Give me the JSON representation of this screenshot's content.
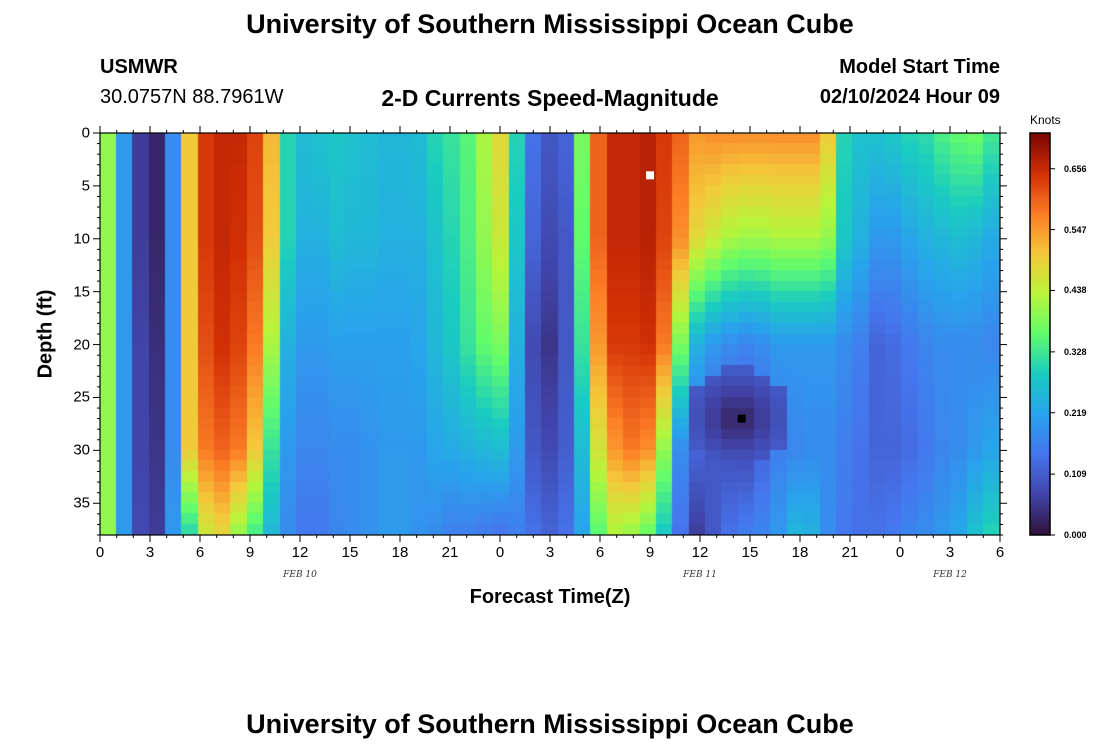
{
  "header": {
    "title": "University of Southern Mississippi Ocean Cube",
    "station": "USMWR",
    "coords": "30.0757N  88.7961W",
    "subtitle": "2-D Currents Speed-Magnitude",
    "model_label": "Model Start Time",
    "model_time": "02/10/2024 Hour 09"
  },
  "footer": {
    "title": "University of Southern Mississippi Ocean Cube"
  },
  "chart_data": {
    "type": "heatmap",
    "title": "2-D Currents Speed-Magnitude",
    "xlabel": "Forecast Time(Z)",
    "ylabel": "Depth (ft)",
    "x_ticks": [
      "0",
      "3",
      "6",
      "9",
      "12",
      "15",
      "18",
      "21",
      "0",
      "3",
      "6",
      "9",
      "12",
      "15",
      "18",
      "21",
      "0",
      "3",
      "6"
    ],
    "x_hours": [
      0,
      3,
      6,
      9,
      12,
      15,
      18,
      21,
      24,
      27,
      30,
      33,
      36,
      39,
      42,
      45,
      48,
      51,
      54
    ],
    "xlim": [
      0,
      54
    ],
    "y_ticks": [
      "0",
      "5",
      "10",
      "15",
      "20",
      "25",
      "30",
      "35"
    ],
    "y_values": [
      0,
      5,
      10,
      15,
      20,
      25,
      30,
      35
    ],
    "ylim": [
      0,
      38
    ],
    "date_labels": [
      {
        "text": "FEB 10",
        "hour": 12
      },
      {
        "text": "FEB 11",
        "hour": 36
      },
      {
        "text": "FEB 12",
        "hour": 51
      }
    ],
    "colorbar": {
      "label": "Knots",
      "ticks": [
        "0.656",
        "0.547",
        "0.438",
        "0.328",
        "0.219",
        "0.109",
        "0.000"
      ],
      "tick_values": [
        0.656,
        0.547,
        0.438,
        0.328,
        0.219,
        0.109,
        0.0
      ],
      "range": [
        0,
        0.72
      ]
    },
    "time_hours": [
      0,
      1,
      2,
      3,
      4,
      5,
      6,
      7,
      8,
      9,
      10,
      11,
      12,
      13,
      14,
      15,
      16,
      17,
      18,
      19,
      20,
      21,
      22,
      23,
      24,
      25,
      26,
      27,
      28,
      29,
      30,
      31,
      32,
      33,
      34,
      35,
      36,
      37,
      38,
      39,
      40,
      41,
      42,
      43,
      44,
      45,
      46,
      47,
      48,
      49,
      50,
      51,
      52,
      53,
      54
    ],
    "depth_profile_ft": [
      0,
      10,
      20,
      30,
      38
    ],
    "speed_knots": [
      [
        0.4,
        0.4,
        0.4,
        0.4,
        0.4
      ],
      [
        0.2,
        0.2,
        0.2,
        0.2,
        0.2
      ],
      [
        0.06,
        0.06,
        0.07,
        0.07,
        0.08
      ],
      [
        0.03,
        0.03,
        0.04,
        0.05,
        0.06
      ],
      [
        0.18,
        0.18,
        0.18,
        0.18,
        0.2
      ],
      [
        0.5,
        0.5,
        0.5,
        0.5,
        0.3
      ],
      [
        0.64,
        0.64,
        0.62,
        0.58,
        0.45
      ],
      [
        0.66,
        0.66,
        0.65,
        0.6,
        0.48
      ],
      [
        0.66,
        0.65,
        0.63,
        0.58,
        0.4
      ],
      [
        0.63,
        0.62,
        0.58,
        0.5,
        0.33
      ],
      [
        0.52,
        0.5,
        0.42,
        0.32,
        0.25
      ],
      [
        0.3,
        0.3,
        0.24,
        0.2,
        0.18
      ],
      [
        0.26,
        0.24,
        0.2,
        0.17,
        0.15
      ],
      [
        0.27,
        0.24,
        0.2,
        0.17,
        0.15
      ],
      [
        0.28,
        0.26,
        0.21,
        0.18,
        0.17
      ],
      [
        0.27,
        0.25,
        0.21,
        0.18,
        0.18
      ],
      [
        0.26,
        0.25,
        0.21,
        0.19,
        0.19
      ],
      [
        0.25,
        0.24,
        0.21,
        0.2,
        0.2
      ],
      [
        0.25,
        0.24,
        0.21,
        0.2,
        0.2
      ],
      [
        0.26,
        0.24,
        0.22,
        0.2,
        0.19
      ],
      [
        0.3,
        0.27,
        0.25,
        0.22,
        0.18
      ],
      [
        0.32,
        0.3,
        0.28,
        0.23,
        0.16
      ],
      [
        0.35,
        0.34,
        0.32,
        0.24,
        0.16
      ],
      [
        0.42,
        0.4,
        0.36,
        0.25,
        0.15
      ],
      [
        0.48,
        0.45,
        0.38,
        0.26,
        0.14
      ],
      [
        0.3,
        0.28,
        0.24,
        0.2,
        0.16
      ],
      [
        0.14,
        0.12,
        0.08,
        0.1,
        0.14
      ],
      [
        0.1,
        0.08,
        0.05,
        0.08,
        0.12
      ],
      [
        0.12,
        0.1,
        0.1,
        0.11,
        0.14
      ],
      [
        0.38,
        0.36,
        0.32,
        0.26,
        0.22
      ],
      [
        0.6,
        0.6,
        0.55,
        0.46,
        0.35
      ],
      [
        0.66,
        0.66,
        0.64,
        0.55,
        0.42
      ],
      [
        0.66,
        0.66,
        0.64,
        0.58,
        0.4
      ],
      [
        0.67,
        0.67,
        0.65,
        0.56,
        0.36
      ],
      [
        0.64,
        0.63,
        0.58,
        0.4,
        0.28
      ],
      [
        0.6,
        0.56,
        0.38,
        0.18,
        0.14
      ],
      [
        0.55,
        0.48,
        0.24,
        0.12,
        0.06
      ],
      [
        0.56,
        0.45,
        0.2,
        0.1,
        0.1
      ],
      [
        0.56,
        0.42,
        0.18,
        0.09,
        0.14
      ],
      [
        0.56,
        0.41,
        0.17,
        0.08,
        0.16
      ],
      [
        0.56,
        0.41,
        0.18,
        0.12,
        0.17
      ],
      [
        0.56,
        0.42,
        0.2,
        0.16,
        0.2
      ],
      [
        0.56,
        0.42,
        0.2,
        0.17,
        0.25
      ],
      [
        0.56,
        0.42,
        0.2,
        0.18,
        0.24
      ],
      [
        0.5,
        0.4,
        0.2,
        0.18,
        0.18
      ],
      [
        0.3,
        0.28,
        0.18,
        0.16,
        0.15
      ],
      [
        0.27,
        0.24,
        0.16,
        0.14,
        0.14
      ],
      [
        0.27,
        0.2,
        0.12,
        0.12,
        0.14
      ],
      [
        0.28,
        0.2,
        0.13,
        0.12,
        0.15
      ],
      [
        0.3,
        0.22,
        0.15,
        0.13,
        0.17
      ],
      [
        0.31,
        0.24,
        0.17,
        0.15,
        0.18
      ],
      [
        0.34,
        0.25,
        0.18,
        0.17,
        0.2
      ],
      [
        0.36,
        0.26,
        0.18,
        0.18,
        0.22
      ],
      [
        0.37,
        0.25,
        0.18,
        0.2,
        0.27
      ],
      [
        0.33,
        0.23,
        0.17,
        0.22,
        0.3
      ]
    ],
    "markers": [
      {
        "name": "white-marker",
        "hour": 33,
        "depth_ft": 4,
        "color": "#ffffff"
      },
      {
        "name": "black-marker",
        "hour": 38.5,
        "depth_ft": 27,
        "color": "#000000"
      }
    ]
  }
}
